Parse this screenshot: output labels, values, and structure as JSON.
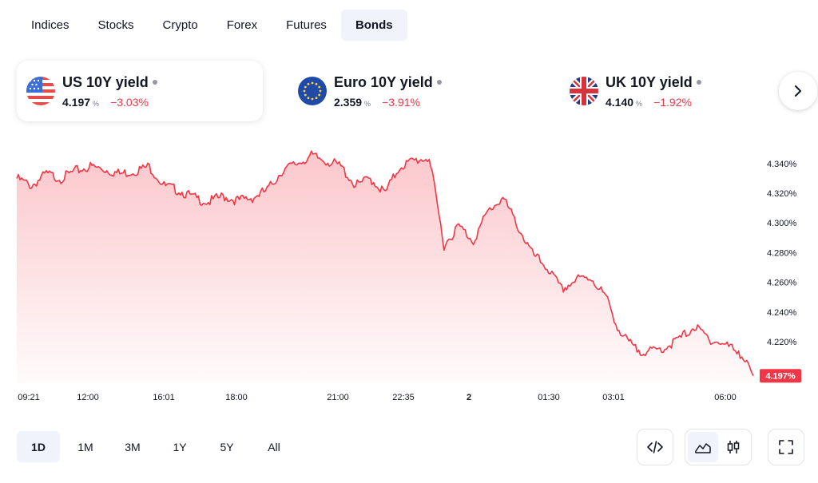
{
  "tabs": [
    {
      "label": "Indices",
      "active": false
    },
    {
      "label": "Stocks",
      "active": false
    },
    {
      "label": "Crypto",
      "active": false
    },
    {
      "label": "Forex",
      "active": false
    },
    {
      "label": "Futures",
      "active": false
    },
    {
      "label": "Bonds",
      "active": true
    }
  ],
  "cards": [
    {
      "title": "US 10Y yield",
      "value": "4.197",
      "unit": "%",
      "change": "−3.03%",
      "flag": "us-flag-icon"
    },
    {
      "title": "Euro 10Y yield",
      "value": "2.359",
      "unit": "%",
      "change": "−3.91%",
      "flag": "eu-flag-icon"
    },
    {
      "title": "UK 10Y yield",
      "value": "4.140",
      "unit": "%",
      "change": "−1.92%",
      "flag": "uk-flag-icon"
    }
  ],
  "chart_data": {
    "type": "area",
    "line_color": "#f23645",
    "y_ticks": [
      "4.340%",
      "4.320%",
      "4.300%",
      "4.280%",
      "4.260%",
      "4.240%",
      "4.220%"
    ],
    "ylim": [
      4.192,
      4.348
    ],
    "x_ticks": [
      "09:21",
      "12:00",
      "16:01",
      "18:00",
      "21:00",
      "22:35",
      "2",
      "01:30",
      "03:01",
      "06:00"
    ],
    "last_value_label": "4.197%",
    "x": [
      0,
      2,
      4,
      6,
      8,
      10,
      12,
      14,
      16,
      18,
      20,
      22,
      24,
      26,
      28,
      30,
      32,
      34,
      36,
      38,
      40,
      42,
      44,
      46,
      48,
      50,
      52,
      54,
      56,
      58,
      60,
      62,
      64,
      66,
      68,
      70,
      72,
      74,
      76,
      78,
      80,
      82,
      84,
      86,
      88,
      90,
      92,
      94,
      96,
      98,
      100
    ],
    "values": [
      4.33,
      4.325,
      4.333,
      4.33,
      4.335,
      4.338,
      4.336,
      4.333,
      4.335,
      4.338,
      4.325,
      4.322,
      4.317,
      4.314,
      4.318,
      4.315,
      4.317,
      4.322,
      4.335,
      4.34,
      4.345,
      4.342,
      4.338,
      4.325,
      4.33,
      4.32,
      4.338,
      4.342,
      4.344,
      4.285,
      4.298,
      4.288,
      4.308,
      4.317,
      4.298,
      4.279,
      4.27,
      4.255,
      4.262,
      4.263,
      4.25,
      4.225,
      4.215,
      4.213,
      4.216,
      4.222,
      4.23,
      4.222,
      4.218,
      4.214,
      4.197
    ]
  },
  "ranges": [
    {
      "label": "1D",
      "active": true
    },
    {
      "label": "1M",
      "active": false
    },
    {
      "label": "3M",
      "active": false
    },
    {
      "label": "1Y",
      "active": false
    },
    {
      "label": "5Y",
      "active": false
    },
    {
      "label": "All",
      "active": false
    }
  ],
  "tools": {
    "embed": "embed-code-icon",
    "area": "area-chart-icon",
    "candles": "candlestick-icon",
    "fullscreen": "fullscreen-icon",
    "next": "chevron-right-icon"
  }
}
